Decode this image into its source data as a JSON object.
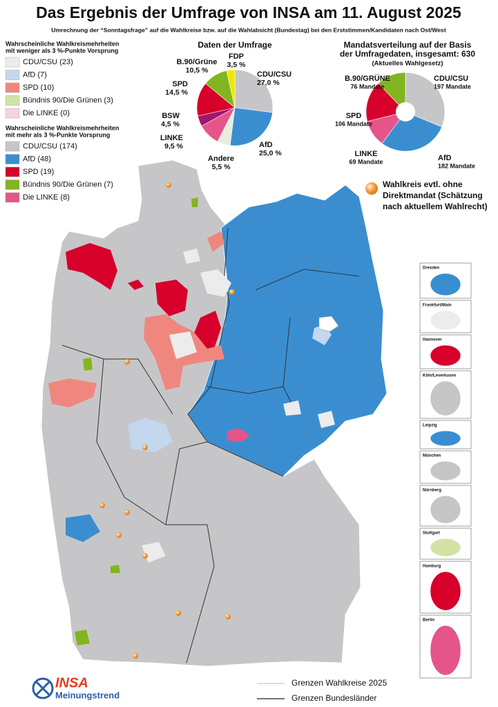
{
  "header": {
    "title": "Das Ergebnis der Umfrage von INSA am 11. August 2025",
    "subtitle": "Umrechnung der “Sonntagsfrage” auf die Wahlkreise bzw. auf die Wahlabsicht (Bundestag) bei den Erststimmen/Kandidaten nach Ost/West"
  },
  "legend_close": {
    "title_lines": [
      "Wahrscheinliche Wahlkreismehrheiten",
      "mit weniger als 3 %-Punkte Vorsprung"
    ],
    "items": [
      {
        "label": "CDU/CSU (23)",
        "color": "#ececec"
      },
      {
        "label": "AfD (7)",
        "color": "#c3d7ee"
      },
      {
        "label": "SPD (10)",
        "color": "#f0877e"
      },
      {
        "label": "Bündnis 90/Die Grünen (3)",
        "color": "#d3e3a6"
      },
      {
        "label": "Die LINKE (0)",
        "color": "#f7d3de"
      }
    ]
  },
  "legend_clear": {
    "title_lines": [
      "Wahrscheinliche Wahlkreismehrheiten",
      "mit mehr als 3 %-Punkte Vorsprung"
    ],
    "items": [
      {
        "label": "CDU/CSU (174)",
        "color": "#c6c6c8"
      },
      {
        "label": "AfD (48)",
        "color": "#3a8ed0"
      },
      {
        "label": "SPD (19)",
        "color": "#d6002b"
      },
      {
        "label": "Bündnis 90/Die Grünen (7)",
        "color": "#82b51f"
      },
      {
        "label": "Die LINKE (8)",
        "color": "#e5558a"
      }
    ]
  },
  "chart_data": [
    {
      "type": "pie",
      "title_lines": [
        "Daten der Umfrage"
      ],
      "categories": [
        "CDU/CSU",
        "AfD",
        "Andere",
        "LINKE",
        "BSW",
        "SPD",
        "B.90/Grüne",
        "FDP"
      ],
      "values": [
        27.0,
        25.0,
        5.5,
        9.5,
        4.5,
        14.5,
        10.5,
        3.5
      ],
      "value_labels": [
        "27,0 %",
        "25,0 %",
        "5,5 %",
        "9,5 %",
        "4,5 %",
        "14,5 %",
        "10,5 %",
        "3,5 %"
      ],
      "colors": [
        "#c6c6c8",
        "#3a8ed0",
        "#e6eedc",
        "#e5558a",
        "#a0176d",
        "#d6002b",
        "#82b51f",
        "#f2e600"
      ],
      "hole": false
    },
    {
      "type": "pie",
      "title_lines": [
        "Mandatsverteilung auf der Basis",
        "der Umfragedaten, insgesamt: 630",
        "(Aktuelles Wahlgesetz)"
      ],
      "categories": [
        "CDU/CSU",
        "AfD",
        "LINKE",
        "SPD",
        "B.90/GRÜNE"
      ],
      "values": [
        197,
        182,
        69,
        106,
        76
      ],
      "value_labels": [
        "197 Mandate",
        "182 Mandate",
        "69 Mandate",
        "106 Mandate",
        "76 Mandate"
      ],
      "colors": [
        "#c6c6c8",
        "#3a8ed0",
        "#e5558a",
        "#d6002b",
        "#82b51f"
      ],
      "hole": true
    }
  ],
  "marker_note": {
    "lines": [
      "Wahlkreis evtl. ohne",
      "Direktmandat (Schätzung",
      "nach aktuellem Wahlrecht)"
    ]
  },
  "insets": [
    "Dresden",
    "Frankfurt/Main",
    "Hannover",
    "Köln/Leverkusen",
    "Leipzig",
    "München",
    "Nürnberg",
    "Stuttgart",
    "Hamburg",
    "Berlin"
  ],
  "map_legend": [
    "Grenzen Wahlkreise 2025",
    "Grenzen Bundesländer"
  ],
  "logo": {
    "brand": "INSA",
    "tagline": "Meinungstrend"
  }
}
